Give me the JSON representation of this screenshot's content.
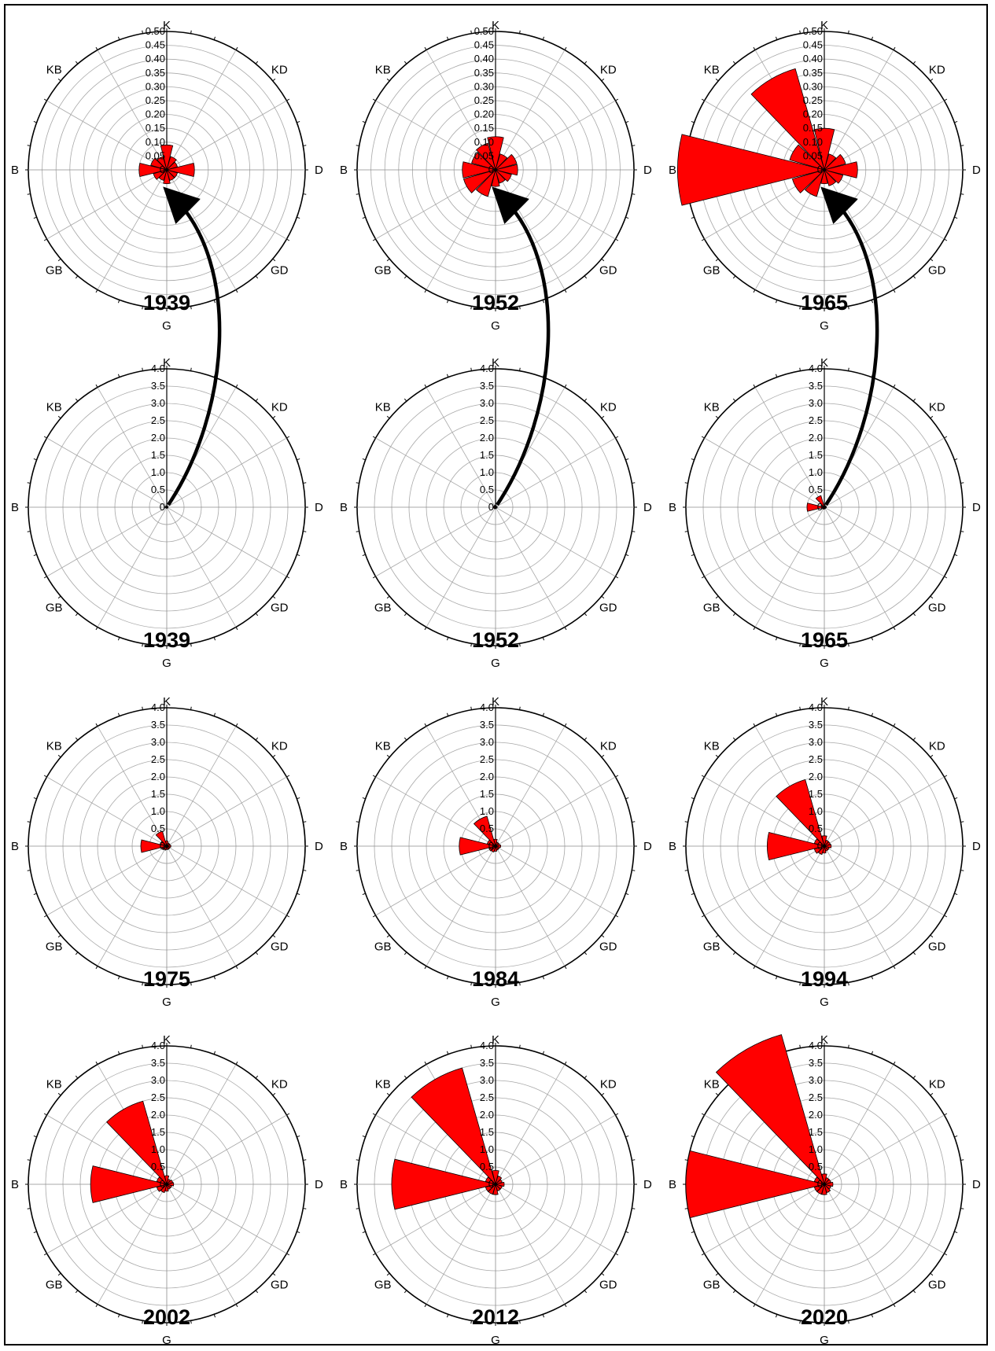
{
  "chart_data": [
    {
      "type": "rose",
      "year": "1939",
      "scale": "small",
      "directions": [
        "K",
        "KD",
        "D",
        "GD",
        "G",
        "GB",
        "B",
        "KB"
      ],
      "rlim": [
        0,
        0.5
      ],
      "rticks": [
        "0",
        "0.05",
        "0.10",
        "0.15",
        "0.20",
        "0.25",
        "0.30",
        "0.35",
        "0.40",
        "0.45",
        "0.50"
      ],
      "sectors": [
        {
          "angle": 0,
          "value": 0.09
        },
        {
          "angle": 30,
          "value": 0.05
        },
        {
          "angle": 60,
          "value": 0.04
        },
        {
          "angle": 90,
          "value": 0.1
        },
        {
          "angle": 120,
          "value": 0.04
        },
        {
          "angle": 150,
          "value": 0.04
        },
        {
          "angle": 180,
          "value": 0.05
        },
        {
          "angle": 210,
          "value": 0.04
        },
        {
          "angle": 240,
          "value": 0.05
        },
        {
          "angle": 270,
          "value": 0.1
        },
        {
          "angle": 300,
          "value": 0.06
        },
        {
          "angle": 330,
          "value": 0.05
        }
      ]
    },
    {
      "type": "rose",
      "year": "1952",
      "scale": "small",
      "directions": [
        "K",
        "KD",
        "D",
        "GD",
        "G",
        "GB",
        "B",
        "KB"
      ],
      "rlim": [
        0,
        0.5
      ],
      "rticks": [
        "0",
        "0.05",
        "0.10",
        "0.15",
        "0.20",
        "0.25",
        "0.30",
        "0.35",
        "0.40",
        "0.45",
        "0.50"
      ],
      "sectors": [
        {
          "angle": 0,
          "value": 0.12
        },
        {
          "angle": 30,
          "value": 0.06
        },
        {
          "angle": 60,
          "value": 0.08
        },
        {
          "angle": 90,
          "value": 0.08
        },
        {
          "angle": 120,
          "value": 0.06
        },
        {
          "angle": 150,
          "value": 0.05
        },
        {
          "angle": 180,
          "value": 0.06
        },
        {
          "angle": 210,
          "value": 0.1
        },
        {
          "angle": 240,
          "value": 0.12
        },
        {
          "angle": 270,
          "value": 0.12
        },
        {
          "angle": 300,
          "value": 0.09
        },
        {
          "angle": 330,
          "value": 0.1
        }
      ]
    },
    {
      "type": "rose",
      "year": "1965",
      "scale": "small",
      "directions": [
        "K",
        "KD",
        "D",
        "GD",
        "G",
        "GB",
        "B",
        "KB"
      ],
      "rlim": [
        0,
        0.5
      ],
      "rticks": [
        "0",
        "0.05",
        "0.10",
        "0.15",
        "0.20",
        "0.25",
        "0.30",
        "0.35",
        "0.40",
        "0.45",
        "0.50"
      ],
      "sectors": [
        {
          "angle": 0,
          "value": 0.15
        },
        {
          "angle": 30,
          "value": 0.06
        },
        {
          "angle": 60,
          "value": 0.08
        },
        {
          "angle": 90,
          "value": 0.12
        },
        {
          "angle": 120,
          "value": 0.07
        },
        {
          "angle": 150,
          "value": 0.06
        },
        {
          "angle": 180,
          "value": 0.05
        },
        {
          "angle": 210,
          "value": 0.1
        },
        {
          "angle": 240,
          "value": 0.12
        },
        {
          "angle": 270,
          "value": 0.53
        },
        {
          "angle": 300,
          "value": 0.13
        },
        {
          "angle": 330,
          "value": 0.38
        }
      ]
    },
    {
      "type": "rose",
      "year": "1939",
      "scale": "large",
      "directions": [
        "K",
        "KD",
        "D",
        "GD",
        "G",
        "GB",
        "B",
        "KB"
      ],
      "rlim": [
        0,
        4.0
      ],
      "rticks": [
        "0",
        "0.5",
        "1.0",
        "1.5",
        "2.0",
        "2.5",
        "3.0",
        "3.5",
        "4.0"
      ],
      "sectors": [
        {
          "angle": 0,
          "value": 0.04
        },
        {
          "angle": 30,
          "value": 0.03
        },
        {
          "angle": 60,
          "value": 0.03
        },
        {
          "angle": 90,
          "value": 0.04
        },
        {
          "angle": 120,
          "value": 0.03
        },
        {
          "angle": 150,
          "value": 0.03
        },
        {
          "angle": 180,
          "value": 0.03
        },
        {
          "angle": 210,
          "value": 0.03
        },
        {
          "angle": 240,
          "value": 0.03
        },
        {
          "angle": 270,
          "value": 0.05
        },
        {
          "angle": 300,
          "value": 0.04
        },
        {
          "angle": 330,
          "value": 0.03
        }
      ]
    },
    {
      "type": "rose",
      "year": "1952",
      "scale": "large",
      "directions": [
        "K",
        "KD",
        "D",
        "GD",
        "G",
        "GB",
        "B",
        "KB"
      ],
      "rlim": [
        0,
        4.0
      ],
      "rticks": [
        "0",
        "0.5",
        "1.0",
        "1.5",
        "2.0",
        "2.5",
        "3.0",
        "3.5",
        "4.0"
      ],
      "sectors": [
        {
          "angle": 0,
          "value": 0.05
        },
        {
          "angle": 30,
          "value": 0.04
        },
        {
          "angle": 60,
          "value": 0.04
        },
        {
          "angle": 90,
          "value": 0.05
        },
        {
          "angle": 120,
          "value": 0.04
        },
        {
          "angle": 150,
          "value": 0.04
        },
        {
          "angle": 180,
          "value": 0.04
        },
        {
          "angle": 210,
          "value": 0.05
        },
        {
          "angle": 240,
          "value": 0.05
        },
        {
          "angle": 270,
          "value": 0.06
        },
        {
          "angle": 300,
          "value": 0.05
        },
        {
          "angle": 330,
          "value": 0.06
        }
      ]
    },
    {
      "type": "rose",
      "year": "1965",
      "scale": "large",
      "directions": [
        "K",
        "KD",
        "D",
        "GD",
        "G",
        "GB",
        "B",
        "KB"
      ],
      "rlim": [
        0,
        4.0
      ],
      "rticks": [
        "0",
        "0.5",
        "1.0",
        "1.5",
        "2.0",
        "2.5",
        "3.0",
        "3.5",
        "4.0"
      ],
      "sectors": [
        {
          "angle": 0,
          "value": 0.08
        },
        {
          "angle": 30,
          "value": 0.05
        },
        {
          "angle": 60,
          "value": 0.05
        },
        {
          "angle": 90,
          "value": 0.06
        },
        {
          "angle": 120,
          "value": 0.05
        },
        {
          "angle": 150,
          "value": 0.04
        },
        {
          "angle": 180,
          "value": 0.05
        },
        {
          "angle": 210,
          "value": 0.06
        },
        {
          "angle": 240,
          "value": 0.07
        },
        {
          "angle": 270,
          "value": 0.5
        },
        {
          "angle": 300,
          "value": 0.1
        },
        {
          "angle": 330,
          "value": 0.35
        }
      ]
    },
    {
      "type": "rose",
      "year": "1975",
      "scale": "large",
      "directions": [
        "K",
        "KD",
        "D",
        "GD",
        "G",
        "GB",
        "B",
        "KB"
      ],
      "rlim": [
        0,
        4.0
      ],
      "rticks": [
        "0",
        "0.5",
        "1.0",
        "1.5",
        "2.0",
        "2.5",
        "3.0",
        "3.5",
        "4.0"
      ],
      "sectors": [
        {
          "angle": 0,
          "value": 0.15
        },
        {
          "angle": 30,
          "value": 0.1
        },
        {
          "angle": 60,
          "value": 0.1
        },
        {
          "angle": 90,
          "value": 0.12
        },
        {
          "angle": 120,
          "value": 0.1
        },
        {
          "angle": 150,
          "value": 0.1
        },
        {
          "angle": 180,
          "value": 0.1
        },
        {
          "angle": 210,
          "value": 0.12
        },
        {
          "angle": 240,
          "value": 0.15
        },
        {
          "angle": 270,
          "value": 0.75
        },
        {
          "angle": 300,
          "value": 0.2
        },
        {
          "angle": 330,
          "value": 0.45
        }
      ]
    },
    {
      "type": "rose",
      "year": "1984",
      "scale": "large",
      "directions": [
        "K",
        "KD",
        "D",
        "GD",
        "G",
        "GB",
        "B",
        "KB"
      ],
      "rlim": [
        0,
        4.0
      ],
      "rticks": [
        "0",
        "0.5",
        "1.0",
        "1.5",
        "2.0",
        "2.5",
        "3.0",
        "3.5",
        "4.0"
      ],
      "sectors": [
        {
          "angle": 0,
          "value": 0.2
        },
        {
          "angle": 30,
          "value": 0.12
        },
        {
          "angle": 60,
          "value": 0.12
        },
        {
          "angle": 90,
          "value": 0.15
        },
        {
          "angle": 120,
          "value": 0.12
        },
        {
          "angle": 150,
          "value": 0.12
        },
        {
          "angle": 180,
          "value": 0.15
        },
        {
          "angle": 210,
          "value": 0.18
        },
        {
          "angle": 240,
          "value": 0.2
        },
        {
          "angle": 270,
          "value": 1.05
        },
        {
          "angle": 300,
          "value": 0.25
        },
        {
          "angle": 330,
          "value": 0.9
        }
      ]
    },
    {
      "type": "rose",
      "year": "1994",
      "scale": "large",
      "directions": [
        "K",
        "KD",
        "D",
        "GD",
        "G",
        "GB",
        "B",
        "KB"
      ],
      "rlim": [
        0,
        4.0
      ],
      "rticks": [
        "0",
        "0.5",
        "1.0",
        "1.5",
        "2.0",
        "2.5",
        "3.0",
        "3.5",
        "4.0"
      ],
      "sectors": [
        {
          "angle": 0,
          "value": 0.3
        },
        {
          "angle": 30,
          "value": 0.18
        },
        {
          "angle": 60,
          "value": 0.18
        },
        {
          "angle": 90,
          "value": 0.2
        },
        {
          "angle": 120,
          "value": 0.15
        },
        {
          "angle": 150,
          "value": 0.15
        },
        {
          "angle": 180,
          "value": 0.2
        },
        {
          "angle": 210,
          "value": 0.25
        },
        {
          "angle": 240,
          "value": 0.3
        },
        {
          "angle": 270,
          "value": 1.65
        },
        {
          "angle": 300,
          "value": 0.3
        },
        {
          "angle": 330,
          "value": 2.0
        }
      ]
    },
    {
      "type": "rose",
      "year": "2002",
      "scale": "large",
      "directions": [
        "K",
        "KD",
        "D",
        "GD",
        "G",
        "GB",
        "B",
        "KB"
      ],
      "rlim": [
        0,
        4.0
      ],
      "rticks": [
        "0",
        "0.5",
        "1.0",
        "1.5",
        "2.0",
        "2.5",
        "3.0",
        "3.5",
        "4.0"
      ],
      "sectors": [
        {
          "angle": 0,
          "value": 0.25
        },
        {
          "angle": 30,
          "value": 0.15
        },
        {
          "angle": 60,
          "value": 0.18
        },
        {
          "angle": 90,
          "value": 0.2
        },
        {
          "angle": 120,
          "value": 0.15
        },
        {
          "angle": 150,
          "value": 0.15
        },
        {
          "angle": 180,
          "value": 0.2
        },
        {
          "angle": 210,
          "value": 0.25
        },
        {
          "angle": 240,
          "value": 0.3
        },
        {
          "angle": 270,
          "value": 2.2
        },
        {
          "angle": 300,
          "value": 0.3
        },
        {
          "angle": 330,
          "value": 2.5
        }
      ]
    },
    {
      "type": "rose",
      "year": "2012",
      "scale": "large",
      "directions": [
        "K",
        "KD",
        "D",
        "GD",
        "G",
        "GB",
        "B",
        "KB"
      ],
      "rlim": [
        0,
        4.0
      ],
      "rticks": [
        "0",
        "0.5",
        "1.0",
        "1.5",
        "2.0",
        "2.5",
        "3.0",
        "3.5",
        "4.0"
      ],
      "sectors": [
        {
          "angle": 0,
          "value": 0.4
        },
        {
          "angle": 30,
          "value": 0.25
        },
        {
          "angle": 60,
          "value": 0.2
        },
        {
          "angle": 90,
          "value": 0.25
        },
        {
          "angle": 120,
          "value": 0.2
        },
        {
          "angle": 150,
          "value": 0.2
        },
        {
          "angle": 180,
          "value": 0.3
        },
        {
          "angle": 210,
          "value": 0.3
        },
        {
          "angle": 240,
          "value": 0.3
        },
        {
          "angle": 270,
          "value": 3.0
        },
        {
          "angle": 300,
          "value": 0.3
        },
        {
          "angle": 330,
          "value": 3.5
        }
      ]
    },
    {
      "type": "rose",
      "year": "2020",
      "scale": "large",
      "directions": [
        "K",
        "KD",
        "D",
        "GD",
        "G",
        "GB",
        "B",
        "KB"
      ],
      "rlim": [
        0,
        4.0
      ],
      "rticks": [
        "0",
        "0.5",
        "1.0",
        "1.5",
        "2.0",
        "2.5",
        "3.0",
        "3.5",
        "4.0"
      ],
      "sectors": [
        {
          "angle": 0,
          "value": 0.3
        },
        {
          "angle": 30,
          "value": 0.2
        },
        {
          "angle": 60,
          "value": 0.2
        },
        {
          "angle": 90,
          "value": 0.25
        },
        {
          "angle": 120,
          "value": 0.2
        },
        {
          "angle": 150,
          "value": 0.25
        },
        {
          "angle": 180,
          "value": 0.3
        },
        {
          "angle": 210,
          "value": 0.3
        },
        {
          "angle": 240,
          "value": 0.3
        },
        {
          "angle": 270,
          "value": 4.0
        },
        {
          "angle": 300,
          "value": 0.3
        },
        {
          "angle": 330,
          "value": 4.5
        }
      ]
    }
  ],
  "colors": {
    "sector_fill": "#ff0000",
    "sector_stroke": "#000000",
    "grid": "#a8a8a8",
    "arrow": "#000000"
  },
  "arrows": [
    {
      "from_chart": 3,
      "to_chart": 0
    },
    {
      "from_chart": 4,
      "to_chart": 1
    },
    {
      "from_chart": 5,
      "to_chart": 2
    }
  ]
}
